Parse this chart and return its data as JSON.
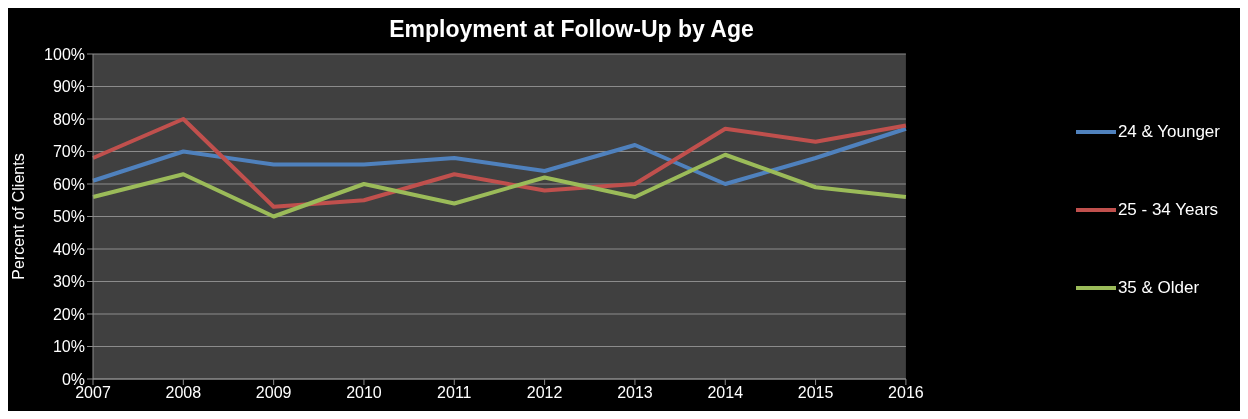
{
  "chart_data": {
    "type": "line",
    "title": "Employment at Follow-Up by Age",
    "ylabel": "Percent of Clients",
    "categories": [
      "2007",
      "2008",
      "2009",
      "2010",
      "2011",
      "2012",
      "2013",
      "2014",
      "2015",
      "2016"
    ],
    "series": [
      {
        "name": "24 & Younger",
        "color": "#4f81bd",
        "values": [
          61,
          70,
          66,
          66,
          68,
          64,
          72,
          60,
          68,
          77
        ]
      },
      {
        "name": "25 - 34 Years",
        "color": "#c0504d",
        "values": [
          68,
          80,
          53,
          55,
          63,
          58,
          60,
          77,
          73,
          78
        ]
      },
      {
        "name": "35 & Older",
        "color": "#9bbb59",
        "values": [
          56,
          63,
          50,
          60,
          54,
          62,
          56,
          69,
          59,
          56
        ]
      }
    ],
    "ylim": [
      0,
      100
    ],
    "yticks": [
      {
        "value": 0,
        "label": "0%"
      },
      {
        "value": 10,
        "label": "10%"
      },
      {
        "value": 20,
        "label": "20%"
      },
      {
        "value": 30,
        "label": "30%"
      },
      {
        "value": 40,
        "label": "40%"
      },
      {
        "value": 50,
        "label": "50%"
      },
      {
        "value": 60,
        "label": "60%"
      },
      {
        "value": 70,
        "label": "70%"
      },
      {
        "value": 80,
        "label": "80%"
      },
      {
        "value": 90,
        "label": "90%"
      },
      {
        "value": 100,
        "label": "100%"
      }
    ],
    "grid": "y",
    "legend": "right",
    "marker": "none",
    "line_style": "solid"
  }
}
